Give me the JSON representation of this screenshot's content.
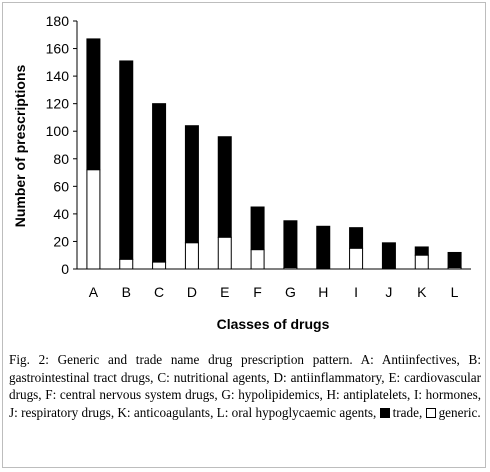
{
  "chart_data": {
    "type": "bar",
    "stacked": true,
    "categories": [
      "A",
      "B",
      "C",
      "D",
      "E",
      "F",
      "G",
      "H",
      "I",
      "J",
      "K",
      "L"
    ],
    "series": [
      {
        "name": "generic",
        "color": "#ffffff",
        "values": [
          72,
          7,
          5,
          19,
          23,
          14,
          1,
          0,
          15,
          0,
          10,
          1
        ]
      },
      {
        "name": "trade",
        "color": "#000000",
        "values": [
          95,
          144,
          115,
          85,
          73,
          31,
          34,
          31,
          15,
          19,
          6,
          11
        ]
      }
    ],
    "totals": [
      167,
      151,
      120,
      104,
      96,
      45,
      35,
      31,
      30,
      19,
      16,
      12
    ],
    "xlabel": "Classes of drugs",
    "ylabel": "Number of prescriptions",
    "ylim": [
      0,
      180
    ],
    "yticks": [
      0,
      20,
      40,
      60,
      80,
      100,
      120,
      140,
      160,
      180
    ],
    "grid": false,
    "legend": "none"
  },
  "caption": {
    "title": "Fig. 2: Generic and trade name drug prescription pattern.",
    "body": "A: Antiinfectives, B: gastrointestinal tract drugs, C: nutritional agents, D: antiinflammatory, E: cardiovascular drugs, F: central nervous system drugs, G: hypolipidemics, H: antiplatelets, I: hormones, J: respiratory drugs, K: anticoagulants, L: oral hypoglycaemic agents,",
    "legend_trade": "trade,",
    "legend_generic": "generic."
  }
}
